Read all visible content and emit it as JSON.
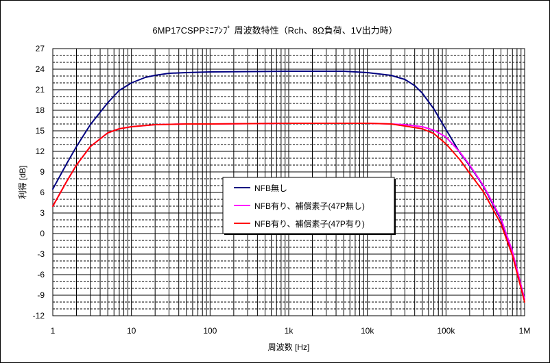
{
  "chart_data": {
    "type": "line",
    "title": "6MP17CSPPﾐﾆｱﾝﾌﾟ 周波数特性（Rch、8Ω負荷、1V出力時）",
    "xlabel": "周波数 [Hz]",
    "ylabel": "利得 [dB]",
    "x_scale": "log",
    "xlim": [
      1,
      1000000
    ],
    "ylim": [
      -12,
      27
    ],
    "y_ticks": [
      27,
      24,
      21,
      18,
      15,
      12,
      9,
      6,
      3,
      0,
      -3,
      -6,
      -9,
      -12
    ],
    "x_ticks": [
      {
        "value": 1,
        "label": "1"
      },
      {
        "value": 10,
        "label": "10"
      },
      {
        "value": 100,
        "label": "100"
      },
      {
        "value": 1000,
        "label": "1k"
      },
      {
        "value": 10000,
        "label": "10k"
      },
      {
        "value": 100000,
        "label": "100k"
      },
      {
        "value": 1000000,
        "label": "1M"
      }
    ],
    "grid": true,
    "legend_position": "center",
    "series": [
      {
        "name": "NFB無し",
        "color": "#000080",
        "x": [
          1,
          1.5,
          2,
          3,
          5,
          7,
          10,
          15,
          20,
          30,
          50,
          100,
          1000,
          5000,
          10000,
          20000,
          30000,
          40000,
          50000,
          70000,
          100000,
          150000,
          200000,
          300000,
          500000,
          700000,
          1000000
        ],
        "y": [
          6.5,
          10.2,
          12.7,
          15.9,
          19.1,
          20.9,
          22.0,
          22.8,
          23.1,
          23.4,
          23.5,
          23.6,
          23.7,
          23.7,
          23.5,
          23.1,
          22.5,
          21.6,
          20.5,
          18.2,
          15.2,
          11.8,
          9.9,
          6.9,
          2.0,
          -2.8,
          -9.6
        ]
      },
      {
        "name": "NFB有り、補償素子(47P無し)",
        "color": "#ff00ff",
        "x": [
          1,
          1.5,
          2,
          3,
          5,
          7,
          10,
          20,
          50,
          100,
          1000,
          10000,
          20000,
          30000,
          50000,
          70000,
          100000,
          150000,
          200000,
          300000,
          500000,
          700000,
          1000000
        ],
        "y": [
          4.0,
          7.6,
          10.0,
          12.7,
          14.7,
          15.3,
          15.6,
          15.9,
          16.0,
          16.0,
          16.1,
          16.1,
          16.0,
          15.9,
          15.6,
          15.1,
          14.1,
          11.9,
          10.0,
          7.0,
          2.2,
          -2.6,
          -9.6
        ]
      },
      {
        "name": "NFB有り、補償素子(47P有り)",
        "color": "#ff0000",
        "x": [
          1,
          1.5,
          2,
          3,
          5,
          7,
          10,
          20,
          50,
          100,
          1000,
          10000,
          20000,
          30000,
          50000,
          70000,
          100000,
          150000,
          200000,
          300000,
          500000,
          700000,
          1000000
        ],
        "y": [
          4.0,
          7.6,
          10.0,
          12.7,
          14.7,
          15.3,
          15.6,
          15.9,
          16.0,
          16.0,
          16.1,
          16.1,
          16.0,
          15.7,
          15.3,
          14.6,
          13.1,
          10.8,
          8.8,
          6.1,
          1.4,
          -3.2,
          -10.0
        ]
      }
    ]
  }
}
